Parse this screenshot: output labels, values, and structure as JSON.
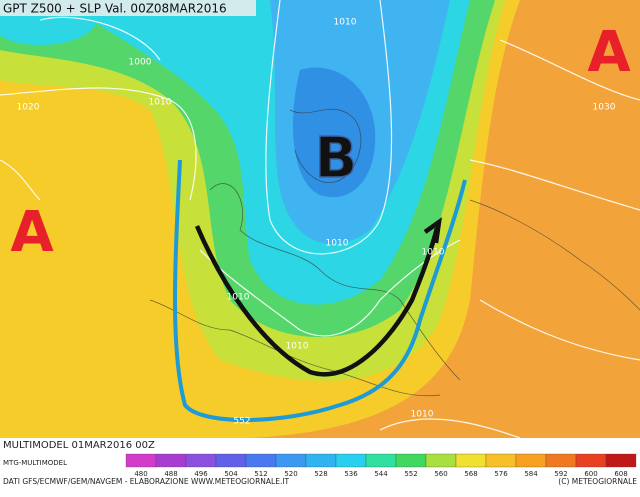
{
  "header": {
    "title": "GPT Z500 + SLP Val. 00Z08MAR2016"
  },
  "map": {
    "high_label_west": "A",
    "high_label_east": "A",
    "low_label": "B",
    "isobar_labels": [
      1000,
      1010,
      1010,
      1020,
      1030,
      1010,
      1010,
      1010,
      1010,
      1010,
      552
    ]
  },
  "footer": {
    "run": "MULTIMODEL 01MAR2016 00Z",
    "model": "MTG-MULTIMODEL",
    "credits": "DATI GFS/ECMWF/GEM/NAVGEM - ELABORAZIONE WWW.METEOGIORNALE.IT",
    "copyright": "(C) METEOGIORNALE"
  },
  "legend": {
    "values": [
      480,
      488,
      496,
      504,
      512,
      520,
      528,
      536,
      544,
      552,
      560,
      568,
      576,
      584,
      592,
      600,
      608
    ],
    "colors": [
      "#d23cc8",
      "#a83cd0",
      "#8c50e0",
      "#6060e8",
      "#4a78f0",
      "#3c98f0",
      "#30b4f0",
      "#28d0f0",
      "#30e0a0",
      "#40d860",
      "#a8e040",
      "#f0e030",
      "#f8c028",
      "#f8a020",
      "#f07820",
      "#e84020",
      "#c01818"
    ]
  }
}
